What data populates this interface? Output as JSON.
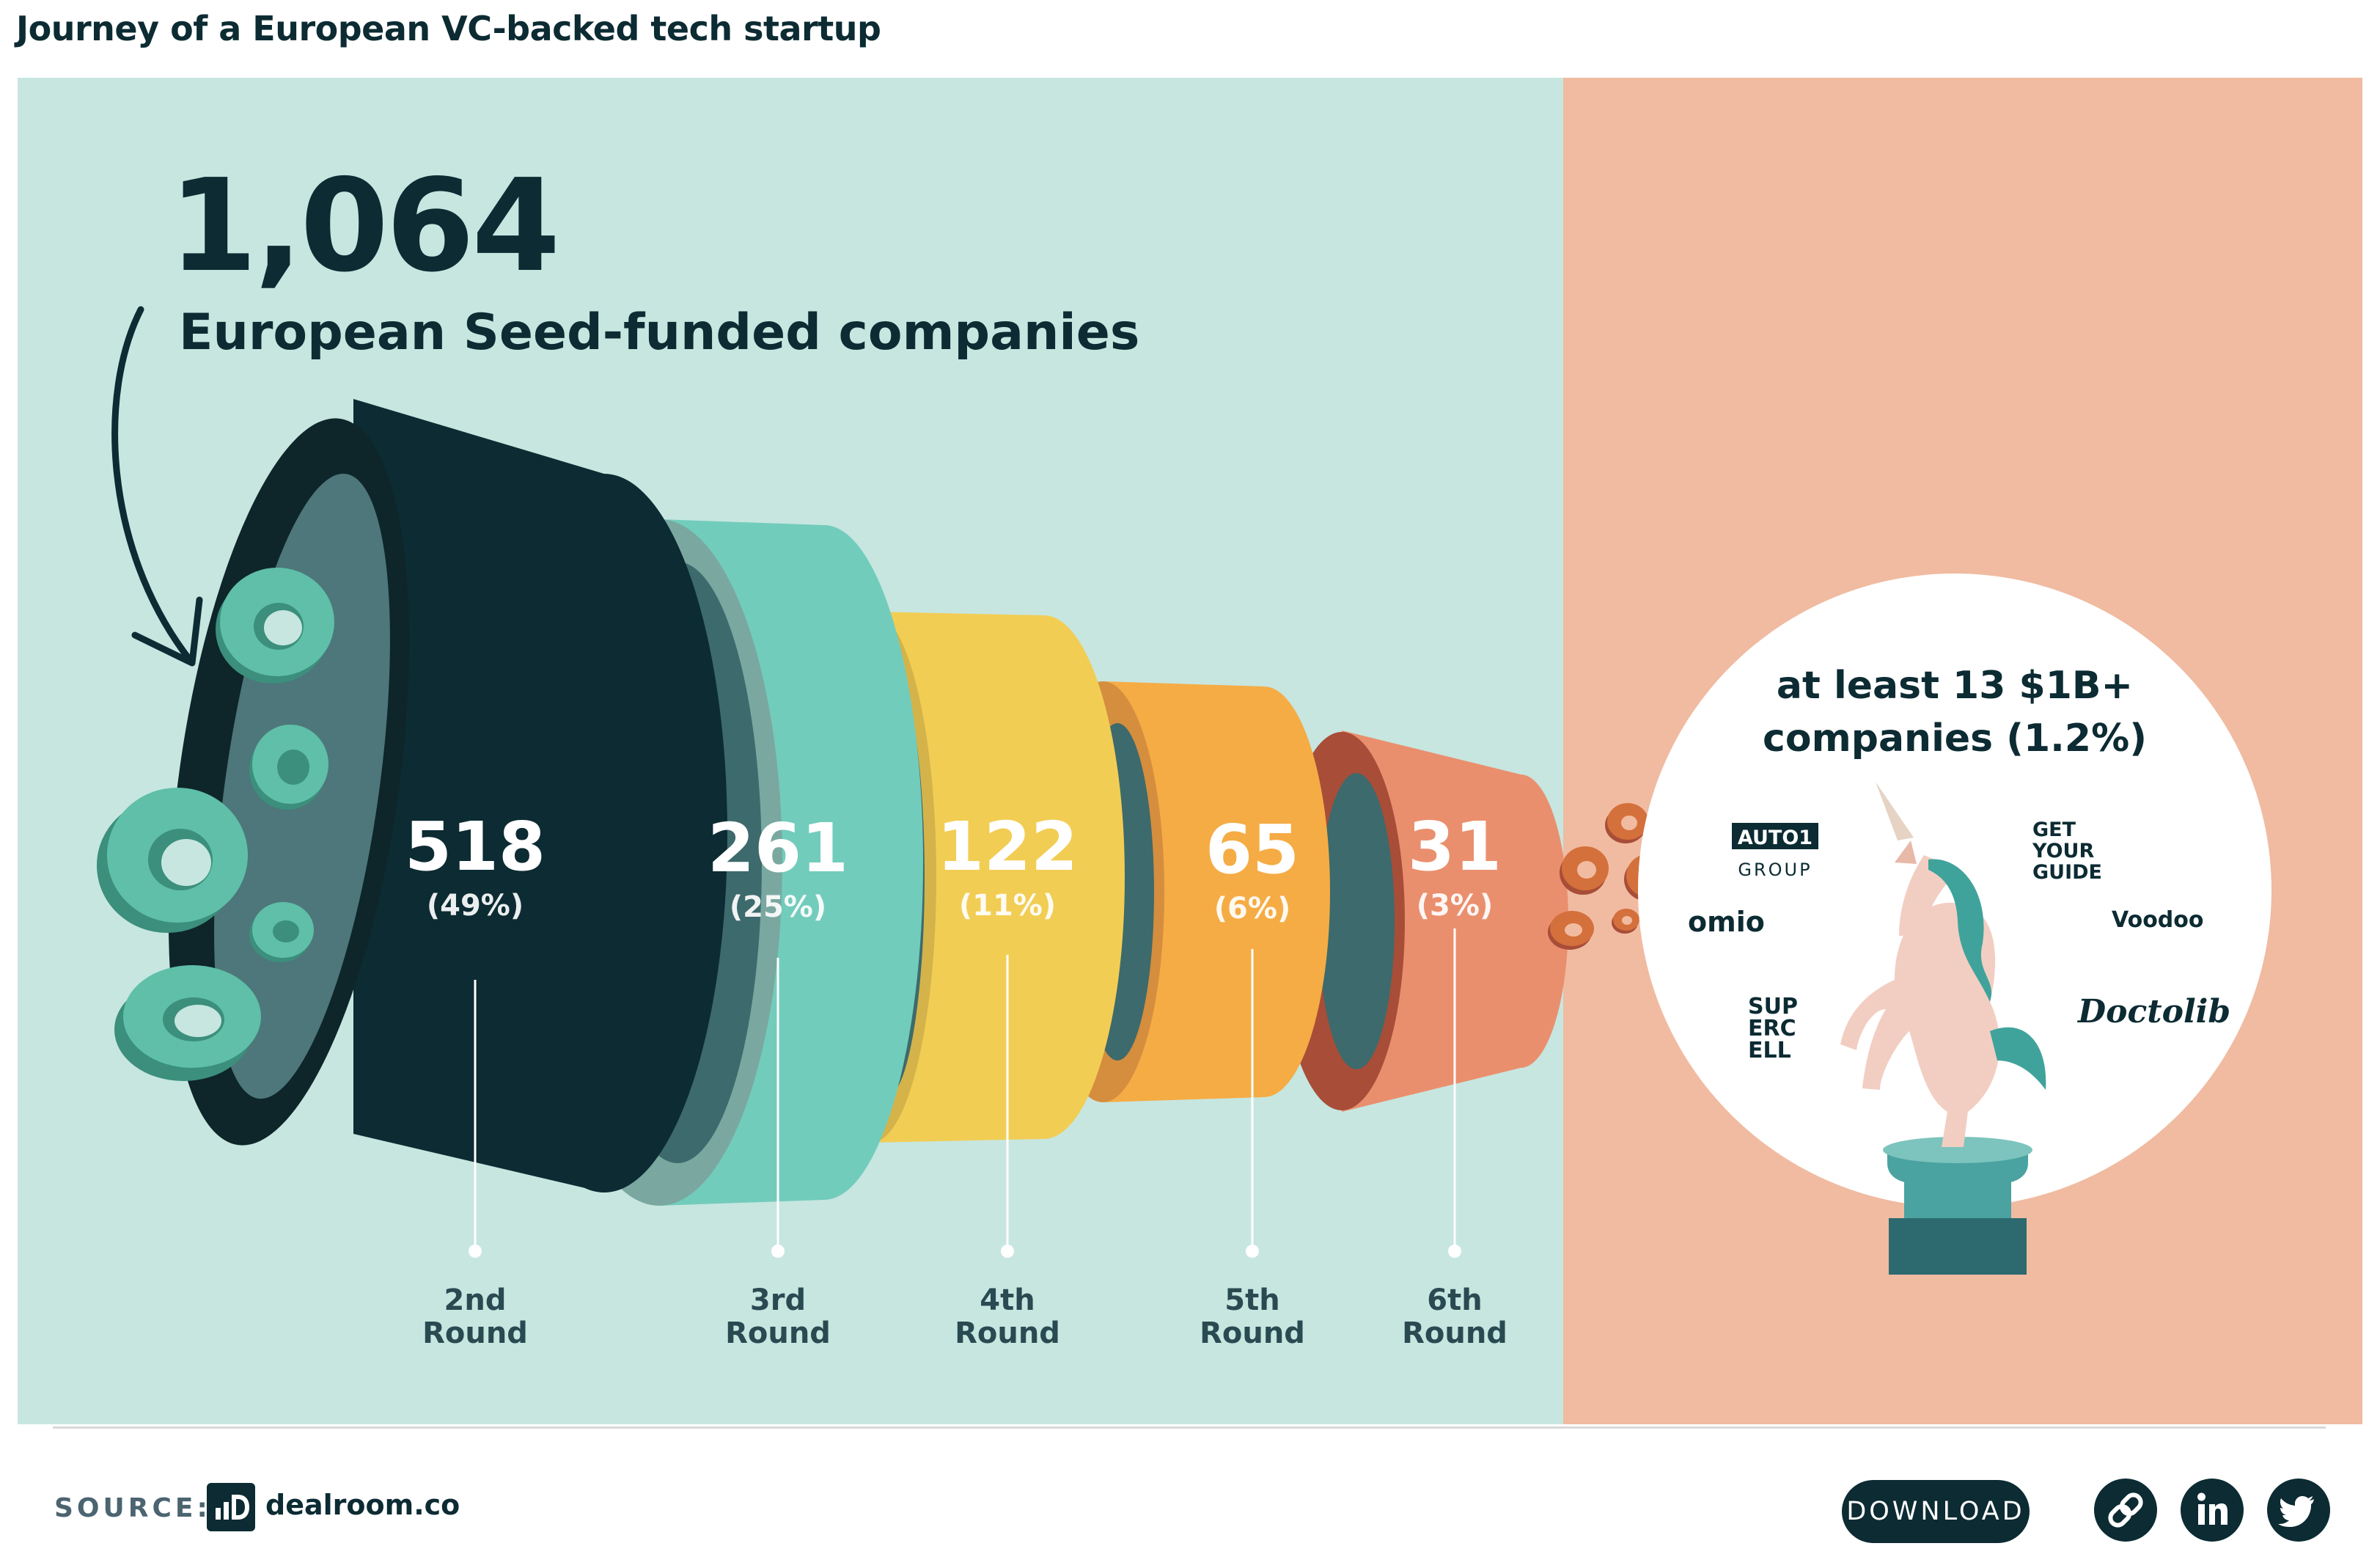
{
  "page": {
    "title": "Journey of a European VC-backed tech startup"
  },
  "colors": {
    "left_bg": "#c7e6e0",
    "right_bg": "#f0bba1",
    "dark": "#0c2b33",
    "teal": "#72ccbc",
    "yellow": "#f2cd54",
    "orange": "#f5ac45",
    "salmon": "#ea8f6e",
    "ring_teal": "#5fbfa8",
    "ring_orange": "#d4703b"
  },
  "headline": {
    "number": "1,064",
    "label": "European Seed-funded companies"
  },
  "chart_data": {
    "type": "funnel",
    "start": {
      "value": 1064,
      "label": "European Seed-funded companies"
    },
    "stages": [
      {
        "value_label": "518",
        "pct_label": "(49%)",
        "value": 518,
        "pct": 49,
        "round_line1": "2nd",
        "round_line2": "Round"
      },
      {
        "value_label": "261",
        "pct_label": "(25%)",
        "value": 261,
        "pct": 25,
        "round_line1": "3rd",
        "round_line2": "Round"
      },
      {
        "value_label": "122",
        "pct_label": "(11%)",
        "value": 122,
        "pct": 11,
        "round_line1": "4th",
        "round_line2": "Round"
      },
      {
        "value_label": "65",
        "pct_label": "(6%)",
        "value": 65,
        "pct": 6,
        "round_line1": "5th",
        "round_line2": "Round"
      },
      {
        "value_label": "31",
        "pct_label": "(3%)",
        "value": 31,
        "pct": 3,
        "round_line1": "6th",
        "round_line2": "Round"
      }
    ],
    "outcome": {
      "line1": "at least 13 $1B+",
      "line2": "companies (1.2%)",
      "value": 13,
      "pct": 1.2
    }
  },
  "unicorn_logos": {
    "auto1": "AUTO1",
    "auto1_sub": "GROUP",
    "gyg_1": "GET",
    "gyg_2": "YOUR",
    "gyg_3": "GUIDE",
    "omio": "omio",
    "voodoo": "Voodoo",
    "supercell_1": "SUP",
    "supercell_2": "ERC",
    "supercell_3": "ELL",
    "doctolib": "Doctolib"
  },
  "footer": {
    "source_label": "SOURCE:",
    "source_logo": "dealroom-logo-icon",
    "source_name": "dealroom.co",
    "download_label": "DOWNLOAD",
    "share_icons": [
      "link-icon",
      "linkedin-icon",
      "twitter-icon"
    ]
  }
}
